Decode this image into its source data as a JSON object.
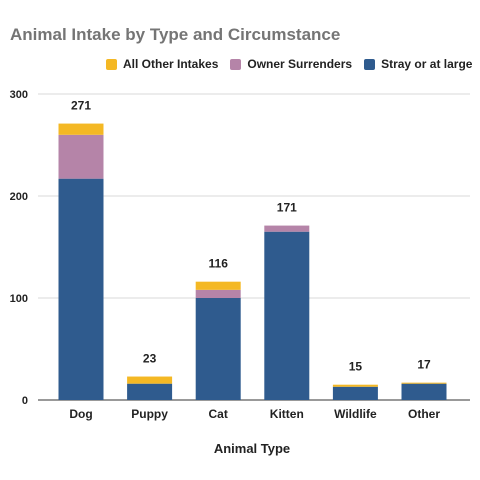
{
  "chart_data": {
    "type": "bar",
    "stacked": true,
    "title": "Animal Intake by Type and Circumstance",
    "xlabel": "Animal Type",
    "ylabel": "",
    "ylim": [
      0,
      300
    ],
    "yticks": [
      0,
      100,
      200,
      300
    ],
    "grid": true,
    "legend_position": "top",
    "categories": [
      "Dog",
      "Puppy",
      "Cat",
      "Kitten",
      "Wildlife",
      "Other"
    ],
    "series": [
      {
        "name": "Stray or at large",
        "color": "#2f5b8e",
        "values": [
          217,
          16,
          100,
          165,
          13,
          16
        ]
      },
      {
        "name": "Owner Surrenders",
        "color": "#b584a8",
        "values": [
          43,
          0,
          8,
          6,
          0,
          0
        ]
      },
      {
        "name": "All Other Intakes",
        "color": "#f4b824",
        "values": [
          11,
          7,
          8,
          0,
          2,
          1
        ]
      }
    ],
    "totals": [
      271,
      23,
      116,
      171,
      15,
      17
    ]
  }
}
